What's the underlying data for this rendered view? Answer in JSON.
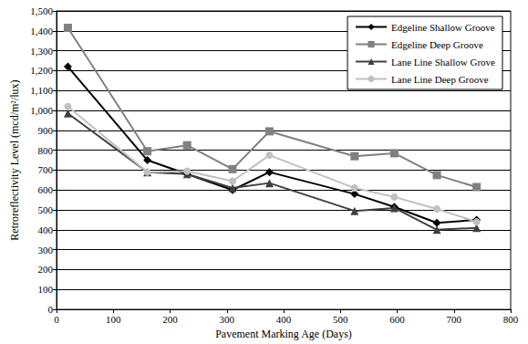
{
  "chart_data": {
    "type": "line",
    "x_label": "Pavement Marking Age (Days)",
    "y_label": "Retroreflectivity Level (mcd/m²/lux)",
    "x": [
      20,
      160,
      230,
      310,
      375,
      525,
      595,
      670,
      740
    ],
    "series": [
      {
        "name": "Edgeline Shallow Groove",
        "color": "#000000",
        "marker": "diamond",
        "values": [
          1220,
          750,
          680,
          600,
          690,
          580,
          515,
          435,
          450
        ]
      },
      {
        "name": "Edgeline Deep Groove",
        "color": "#808080",
        "marker": "square",
        "values": [
          1415,
          795,
          825,
          705,
          895,
          770,
          785,
          675,
          615
        ]
      },
      {
        "name": "Lane Line Shallow Grove",
        "color": "#404040",
        "marker": "triangle",
        "values": [
          985,
          690,
          680,
          610,
          635,
          495,
          510,
          400,
          410
        ]
      },
      {
        "name": "Lane Line Deep Groove",
        "color": "#c0c0c0",
        "marker": "circle",
        "values": [
          1020,
          690,
          695,
          645,
          775,
          610,
          565,
          505,
          440
        ]
      }
    ],
    "xlim": [
      0,
      800
    ],
    "xticks": [
      0,
      100,
      200,
      300,
      400,
      500,
      600,
      700,
      800
    ],
    "ylim": [
      0,
      1500
    ],
    "yticks": [
      0,
      100,
      200,
      300,
      400,
      500,
      600,
      700,
      800,
      900,
      1000,
      1100,
      1200,
      1300,
      1400,
      1500
    ],
    "grid": true,
    "legend": "upper right"
  }
}
